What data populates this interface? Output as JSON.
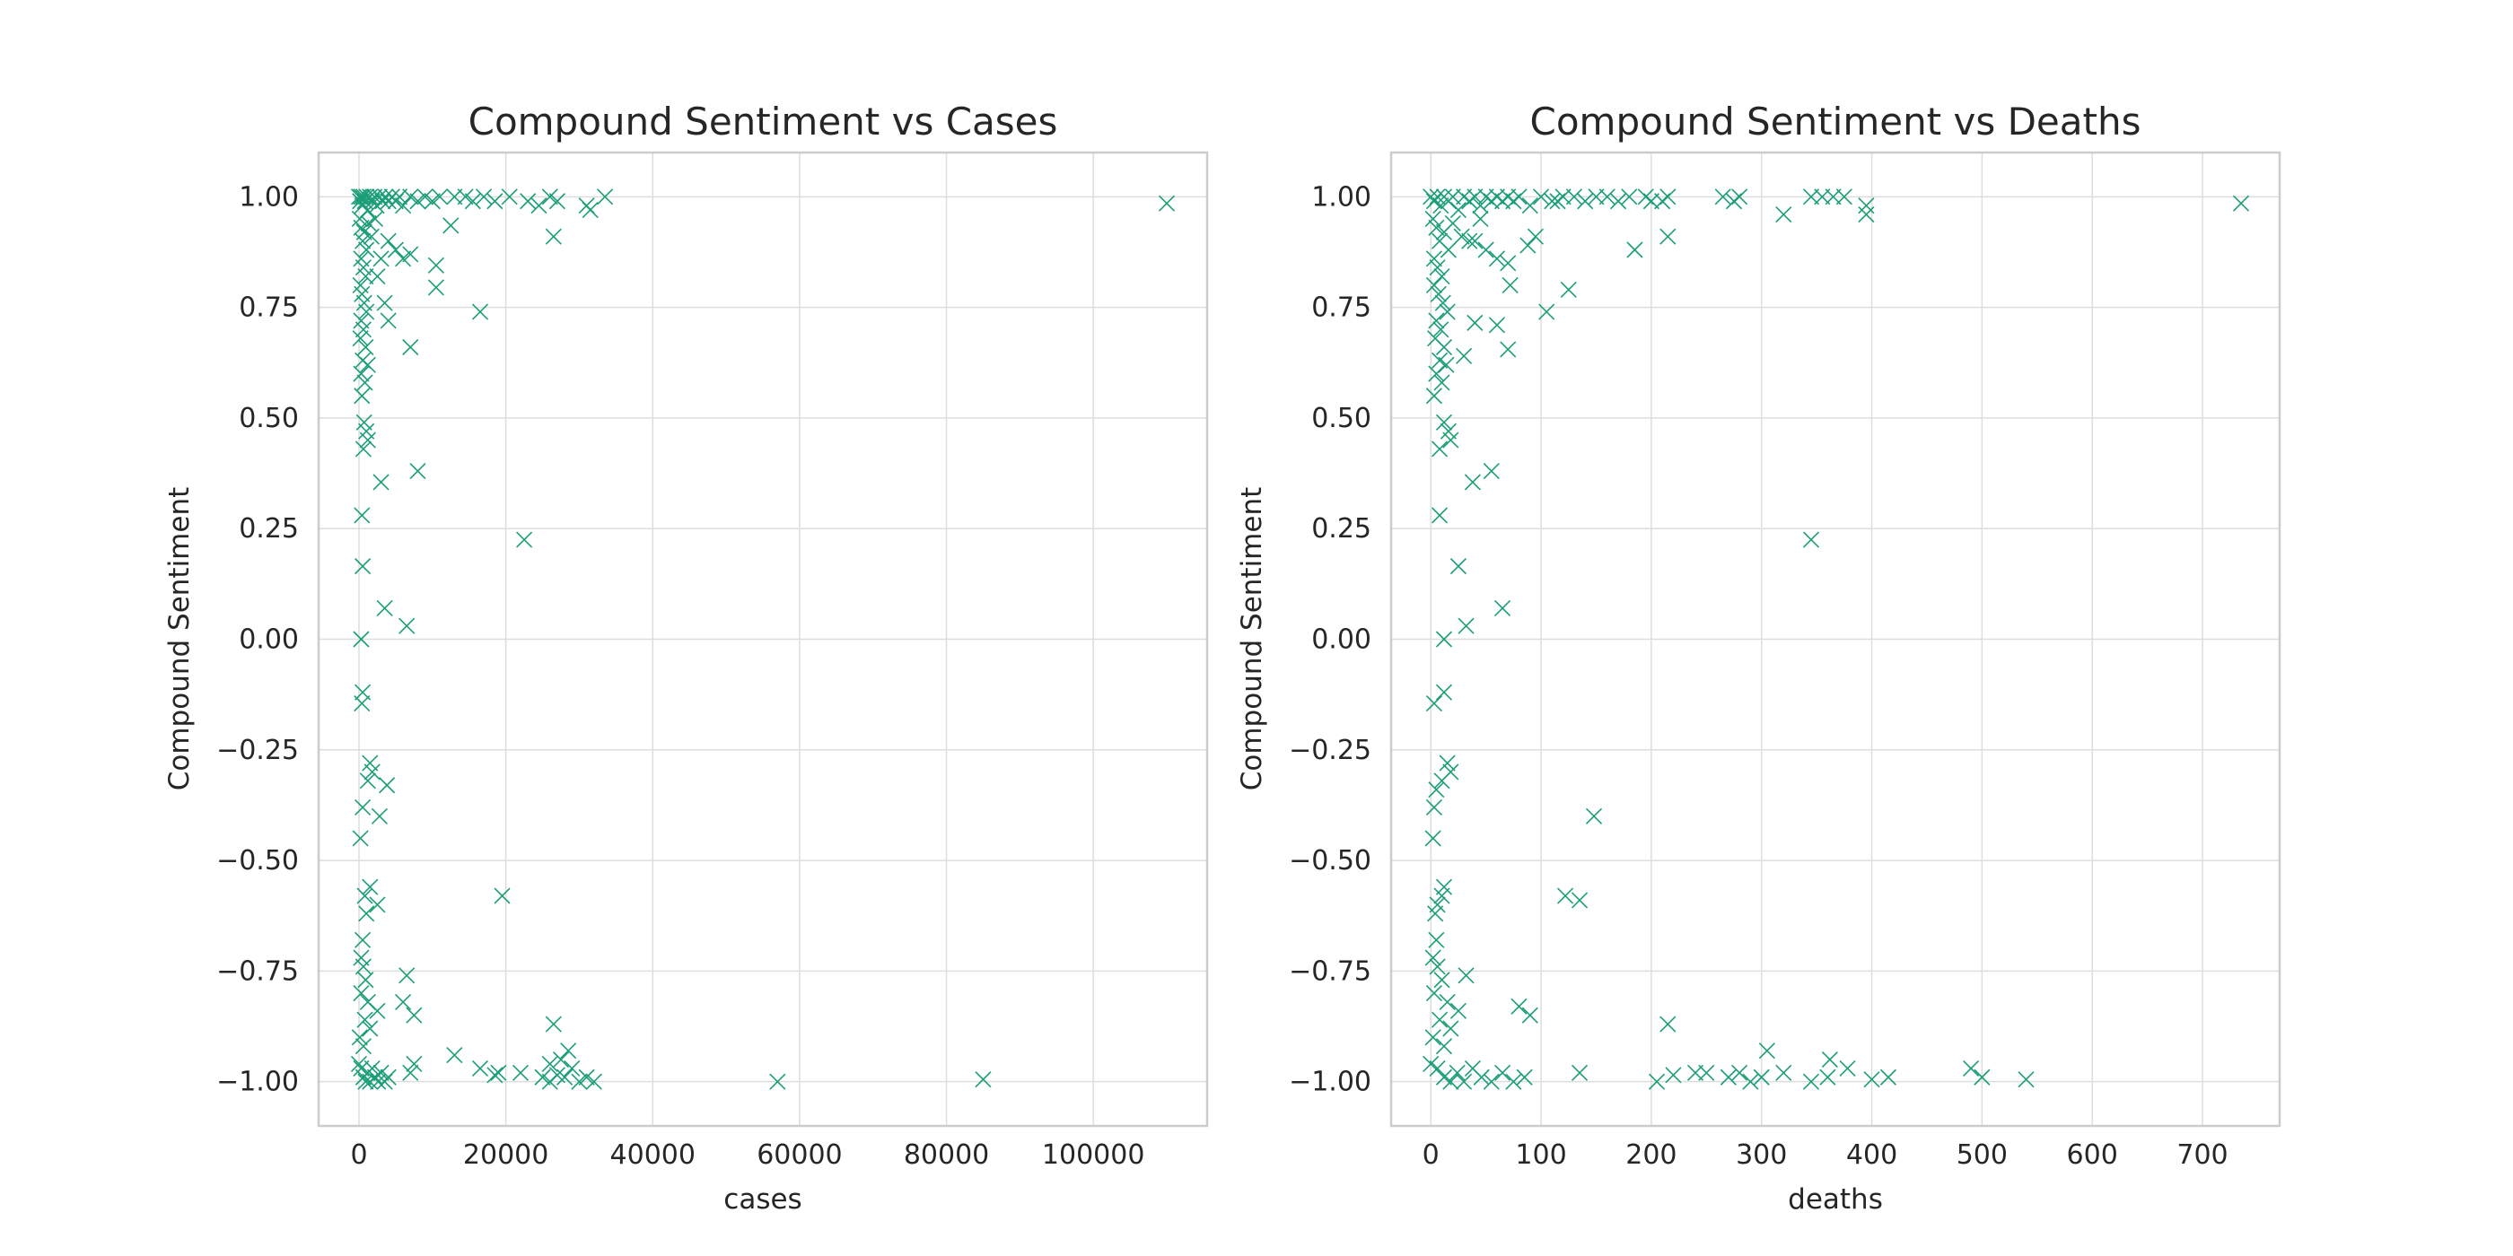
{
  "chart_data": [
    {
      "type": "scatter",
      "title": "Compound Sentiment vs Cases",
      "xlabel": "cases",
      "ylabel": "Compound Sentiment",
      "xlim": [
        -5500,
        115500
      ],
      "ylim": [
        -1.1,
        1.1
      ],
      "xticks": [
        0,
        20000,
        40000,
        60000,
        80000,
        100000
      ],
      "xtick_labels": [
        "0",
        "20000",
        "40000",
        "60000",
        "80000",
        "100000"
      ],
      "yticks": [
        1.0,
        0.75,
        0.5,
        0.25,
        0.0,
        -0.25,
        -0.5,
        -0.75,
        -1.0
      ],
      "ytick_labels": [
        "1.00",
        "0.75",
        "0.50",
        "0.25",
        "0.00",
        "−0.25",
        "−0.50",
        "−0.75",
        "−1.00"
      ],
      "grid": true,
      "marker": "x",
      "color": "#1b9e77",
      "points": [
        [
          0,
          1.0
        ],
        [
          150,
          0.99
        ],
        [
          300,
          1.0
        ],
        [
          450,
          0.98
        ],
        [
          600,
          1.0
        ],
        [
          800,
          0.99
        ],
        [
          1000,
          1.0
        ],
        [
          1200,
          0.97
        ],
        [
          1500,
          1.0
        ],
        [
          1800,
          0.99
        ],
        [
          2100,
          1.0
        ],
        [
          2400,
          0.98
        ],
        [
          2800,
          1.0
        ],
        [
          3200,
          0.99
        ],
        [
          3600,
          1.0
        ],
        [
          4000,
          0.99
        ],
        [
          4500,
          1.0
        ],
        [
          5000,
          0.99
        ],
        [
          5500,
          1.0
        ],
        [
          6000,
          0.98
        ],
        [
          7000,
          1.0
        ],
        [
          8000,
          0.99
        ],
        [
          9000,
          1.0
        ],
        [
          10000,
          0.99
        ],
        [
          11000,
          1.0
        ],
        [
          13000,
          1.0
        ],
        [
          14500,
          1.0
        ],
        [
          15500,
          0.99
        ],
        [
          17000,
          1.0
        ],
        [
          18500,
          0.99
        ],
        [
          20500,
          1.0
        ],
        [
          23000,
          0.99
        ],
        [
          24500,
          0.98
        ],
        [
          26000,
          1.0
        ],
        [
          27000,
          0.99
        ],
        [
          31000,
          0.98
        ],
        [
          31500,
          0.97
        ],
        [
          33500,
          1.0
        ],
        [
          110000,
          0.985
        ],
        [
          100,
          0.95
        ],
        [
          300,
          0.93
        ],
        [
          500,
          0.9
        ],
        [
          700,
          0.92
        ],
        [
          1000,
          0.88
        ],
        [
          1300,
          0.94
        ],
        [
          1700,
          0.91
        ],
        [
          2200,
          0.95
        ],
        [
          300,
          0.86
        ],
        [
          600,
          0.84
        ],
        [
          900,
          0.82
        ],
        [
          200,
          0.8
        ],
        [
          400,
          0.78
        ],
        [
          700,
          0.76
        ],
        [
          1000,
          0.74
        ],
        [
          300,
          0.72
        ],
        [
          600,
          0.7
        ],
        [
          200,
          0.68
        ],
        [
          900,
          0.66
        ],
        [
          500,
          0.63
        ],
        [
          1200,
          0.62
        ],
        [
          300,
          0.6
        ],
        [
          800,
          0.58
        ],
        [
          400,
          0.55
        ],
        [
          700,
          0.49
        ],
        [
          1000,
          0.47
        ],
        [
          1200,
          0.45
        ],
        [
          600,
          0.43
        ],
        [
          3000,
          0.86
        ],
        [
          4000,
          0.9
        ],
        [
          5000,
          0.88
        ],
        [
          6000,
          0.86
        ],
        [
          7000,
          0.87
        ],
        [
          2500,
          0.82
        ],
        [
          3500,
          0.76
        ],
        [
          4000,
          0.72
        ],
        [
          7000,
          0.66
        ],
        [
          10500,
          0.845
        ],
        [
          10500,
          0.795
        ],
        [
          12500,
          0.935
        ],
        [
          16500,
          0.74
        ],
        [
          26500,
          0.91
        ],
        [
          3000,
          0.355
        ],
        [
          8000,
          0.38
        ],
        [
          22500,
          0.225
        ],
        [
          400,
          0.28
        ],
        [
          500,
          0.165
        ],
        [
          3500,
          0.07
        ],
        [
          6500,
          0.03
        ],
        [
          300,
          0.0
        ],
        [
          500,
          -0.12
        ],
        [
          400,
          -0.145
        ],
        [
          1500,
          -0.28
        ],
        [
          1800,
          -0.3
        ],
        [
          1200,
          -0.32
        ],
        [
          3800,
          -0.33
        ],
        [
          500,
          -0.38
        ],
        [
          2800,
          -0.4
        ],
        [
          200,
          -0.45
        ],
        [
          1500,
          -0.56
        ],
        [
          800,
          -0.58
        ],
        [
          2500,
          -0.6
        ],
        [
          1000,
          -0.62
        ],
        [
          19500,
          -0.58
        ],
        [
          500,
          -0.68
        ],
        [
          300,
          -0.72
        ],
        [
          600,
          -0.74
        ],
        [
          900,
          -0.77
        ],
        [
          6500,
          -0.76
        ],
        [
          300,
          -0.8
        ],
        [
          1200,
          -0.82
        ],
        [
          2500,
          -0.84
        ],
        [
          6000,
          -0.82
        ],
        [
          7500,
          -0.85
        ],
        [
          800,
          -0.86
        ],
        [
          1500,
          -0.88
        ],
        [
          100,
          -0.9
        ],
        [
          600,
          -0.92
        ],
        [
          13000,
          -0.94
        ],
        [
          26500,
          -0.87
        ],
        [
          28500,
          -0.93
        ],
        [
          16500,
          -0.97
        ],
        [
          26000,
          -0.96
        ],
        [
          27500,
          -0.95
        ],
        [
          0,
          -0.96
        ],
        [
          300,
          -0.97
        ],
        [
          600,
          -0.99
        ],
        [
          900,
          -1.0
        ],
        [
          1200,
          -0.98
        ],
        [
          1500,
          -1.0
        ],
        [
          1800,
          -0.97
        ],
        [
          2200,
          -0.99
        ],
        [
          2600,
          -1.0
        ],
        [
          3000,
          -0.98
        ],
        [
          3500,
          -1.0
        ],
        [
          4000,
          -0.99
        ],
        [
          7000,
          -0.98
        ],
        [
          7500,
          -0.96
        ],
        [
          18500,
          -0.985
        ],
        [
          19000,
          -0.98
        ],
        [
          22000,
          -0.98
        ],
        [
          25000,
          -0.99
        ],
        [
          26000,
          -1.0
        ],
        [
          27000,
          -0.985
        ],
        [
          28000,
          -0.99
        ],
        [
          29000,
          -0.97
        ],
        [
          30000,
          -1.0
        ],
        [
          31000,
          -0.99
        ],
        [
          32000,
          -1.0
        ],
        [
          57000,
          -1.0
        ],
        [
          85000,
          -0.995
        ]
      ]
    },
    {
      "type": "scatter",
      "title": "Compound Sentiment vs Deaths",
      "xlabel": "deaths",
      "ylabel": "Compound Sentiment",
      "xlim": [
        -36,
        770
      ],
      "ylim": [
        -1.1,
        1.1
      ],
      "xticks": [
        0,
        100,
        200,
        300,
        400,
        500,
        600,
        700
      ],
      "xtick_labels": [
        "0",
        "100",
        "200",
        "300",
        "400",
        "500",
        "600",
        "700"
      ],
      "yticks": [
        1.0,
        0.75,
        0.5,
        0.25,
        0.0,
        -0.25,
        -0.5,
        -0.75,
        -1.0
      ],
      "ytick_labels": [
        "1.00",
        "0.75",
        "0.50",
        "0.25",
        "0.00",
        "−0.25",
        "−0.50",
        "−0.75",
        "−1.00"
      ],
      "grid": true,
      "marker": "x",
      "color": "#1b9e77",
      "points": [
        [
          0,
          1.0
        ],
        [
          3,
          0.99
        ],
        [
          6,
          1.0
        ],
        [
          9,
          0.98
        ],
        [
          12,
          1.0
        ],
        [
          16,
          0.99
        ],
        [
          20,
          1.0
        ],
        [
          25,
          0.97
        ],
        [
          30,
          1.0
        ],
        [
          35,
          0.99
        ],
        [
          40,
          1.0
        ],
        [
          45,
          0.98
        ],
        [
          50,
          1.0
        ],
        [
          55,
          0.99
        ],
        [
          60,
          1.0
        ],
        [
          65,
          0.99
        ],
        [
          70,
          1.0
        ],
        [
          75,
          0.99
        ],
        [
          80,
          1.0
        ],
        [
          90,
          0.98
        ],
        [
          100,
          1.0
        ],
        [
          110,
          0.99
        ],
        [
          115,
          0.99
        ],
        [
          120,
          1.0
        ],
        [
          130,
          1.0
        ],
        [
          140,
          0.99
        ],
        [
          150,
          1.0
        ],
        [
          160,
          1.0
        ],
        [
          170,
          0.99
        ],
        [
          180,
          1.0
        ],
        [
          195,
          1.0
        ],
        [
          200,
          0.99
        ],
        [
          210,
          0.99
        ],
        [
          215,
          1.0
        ],
        [
          265,
          1.0
        ],
        [
          275,
          0.99
        ],
        [
          280,
          1.0
        ],
        [
          345,
          1.0
        ],
        [
          355,
          1.0
        ],
        [
          365,
          1.0
        ],
        [
          375,
          1.0
        ],
        [
          395,
          0.98
        ],
        [
          395,
          0.96
        ],
        [
          320,
          0.96
        ],
        [
          735,
          0.985
        ],
        [
          2,
          0.95
        ],
        [
          5,
          0.93
        ],
        [
          8,
          0.9
        ],
        [
          12,
          0.92
        ],
        [
          16,
          0.88
        ],
        [
          20,
          0.94
        ],
        [
          28,
          0.91
        ],
        [
          35,
          0.9
        ],
        [
          45,
          0.95
        ],
        [
          3,
          0.86
        ],
        [
          6,
          0.84
        ],
        [
          10,
          0.82
        ],
        [
          3,
          0.8
        ],
        [
          7,
          0.78
        ],
        [
          11,
          0.76
        ],
        [
          15,
          0.74
        ],
        [
          5,
          0.72
        ],
        [
          9,
          0.7
        ],
        [
          4,
          0.68
        ],
        [
          12,
          0.66
        ],
        [
          8,
          0.63
        ],
        [
          14,
          0.62
        ],
        [
          5,
          0.6
        ],
        [
          10,
          0.58
        ],
        [
          3,
          0.55
        ],
        [
          12,
          0.49
        ],
        [
          16,
          0.47
        ],
        [
          18,
          0.45
        ],
        [
          8,
          0.43
        ],
        [
          40,
          0.9
        ],
        [
          50,
          0.88
        ],
        [
          60,
          0.86
        ],
        [
          70,
          0.85
        ],
        [
          72,
          0.8
        ],
        [
          88,
          0.89
        ],
        [
          95,
          0.91
        ],
        [
          105,
          0.74
        ],
        [
          60,
          0.71
        ],
        [
          40,
          0.715
        ],
        [
          30,
          0.64
        ],
        [
          70,
          0.655
        ],
        [
          125,
          0.79
        ],
        [
          185,
          0.88
        ],
        [
          215,
          0.91
        ],
        [
          38,
          0.355
        ],
        [
          55,
          0.38
        ],
        [
          345,
          0.225
        ],
        [
          8,
          0.28
        ],
        [
          25,
          0.165
        ],
        [
          65,
          0.07
        ],
        [
          32,
          0.03
        ],
        [
          12,
          0.0
        ],
        [
          12,
          -0.12
        ],
        [
          3,
          -0.145
        ],
        [
          15,
          -0.28
        ],
        [
          18,
          -0.3
        ],
        [
          10,
          -0.32
        ],
        [
          5,
          -0.34
        ],
        [
          3,
          -0.38
        ],
        [
          148,
          -0.4
        ],
        [
          2,
          -0.45
        ],
        [
          12,
          -0.56
        ],
        [
          10,
          -0.58
        ],
        [
          6,
          -0.6
        ],
        [
          4,
          -0.62
        ],
        [
          122,
          -0.58
        ],
        [
          135,
          -0.59
        ],
        [
          5,
          -0.68
        ],
        [
          2,
          -0.72
        ],
        [
          6,
          -0.74
        ],
        [
          32,
          -0.76
        ],
        [
          10,
          -0.77
        ],
        [
          3,
          -0.8
        ],
        [
          15,
          -0.82
        ],
        [
          25,
          -0.84
        ],
        [
          80,
          -0.83
        ],
        [
          90,
          -0.85
        ],
        [
          8,
          -0.86
        ],
        [
          18,
          -0.88
        ],
        [
          2,
          -0.9
        ],
        [
          12,
          -0.92
        ],
        [
          215,
          -0.87
        ],
        [
          305,
          -0.93
        ],
        [
          362,
          -0.95
        ],
        [
          378,
          -0.97
        ],
        [
          490,
          -0.97
        ],
        [
          0,
          -0.96
        ],
        [
          6,
          -0.97
        ],
        [
          12,
          -0.99
        ],
        [
          18,
          -1.0
        ],
        [
          24,
          -0.98
        ],
        [
          30,
          -1.0
        ],
        [
          38,
          -0.97
        ],
        [
          46,
          -0.99
        ],
        [
          55,
          -1.0
        ],
        [
          65,
          -0.98
        ],
        [
          75,
          -1.0
        ],
        [
          85,
          -0.99
        ],
        [
          135,
          -0.98
        ],
        [
          205,
          -1.0
        ],
        [
          220,
          -0.985
        ],
        [
          240,
          -0.98
        ],
        [
          250,
          -0.98
        ],
        [
          270,
          -0.99
        ],
        [
          280,
          -0.98
        ],
        [
          290,
          -1.0
        ],
        [
          300,
          -0.99
        ],
        [
          320,
          -0.98
        ],
        [
          345,
          -1.0
        ],
        [
          360,
          -0.99
        ],
        [
          400,
          -0.995
        ],
        [
          415,
          -0.99
        ],
        [
          500,
          -0.99
        ],
        [
          540,
          -0.995
        ]
      ]
    }
  ]
}
